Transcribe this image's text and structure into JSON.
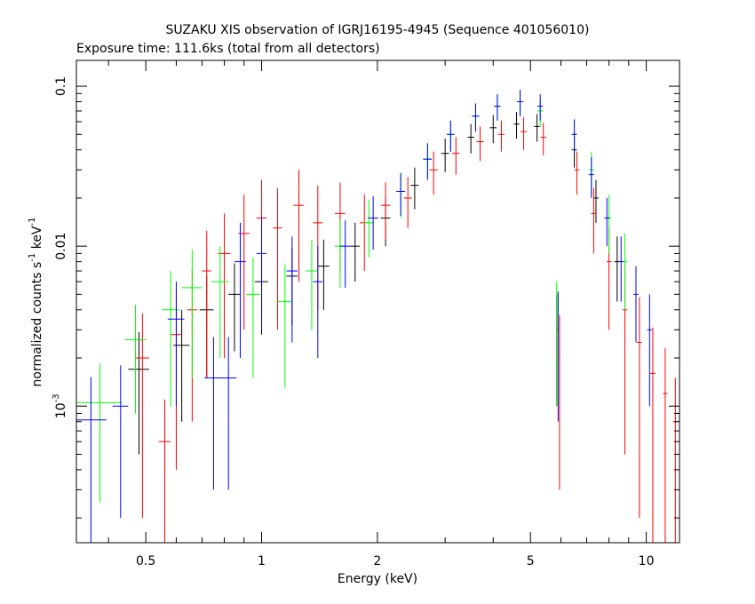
{
  "header": {
    "title": "SUZAKU XIS observation of IGRJ16195-4945 (Sequence 401056010)",
    "subtitle": "Exposure time: 111.6ks (total from all detectors)"
  },
  "chart_data": {
    "type": "scatter",
    "title": "SUZAKU XIS observation of IGRJ16195-4945 (Sequence 401056010)",
    "subtitle": "Exposure time: 111.6ks (total from all detectors)",
    "xlabel": "Energy (keV)",
    "ylabel_main": "normalized counts s",
    "ylabel_sup1": "-1",
    "ylabel_mid": " keV",
    "ylabel_sup2": "-1",
    "xscale": "log",
    "yscale": "log",
    "xlim": [
      0.33,
      12.2
    ],
    "ylim": [
      0.00014,
      0.145
    ],
    "x_ticks": [
      {
        "value": 0.5,
        "label": "0.5"
      },
      {
        "value": 1,
        "label": "1"
      },
      {
        "value": 2,
        "label": "2"
      },
      {
        "value": 5,
        "label": "5"
      },
      {
        "value": 10,
        "label": "10"
      }
    ],
    "y_ticks": [
      {
        "value": 0.001,
        "label": "10",
        "sup": "-3"
      },
      {
        "value": 0.01,
        "label": "0.01",
        "sup": ""
      },
      {
        "value": 0.1,
        "label": "0.1",
        "sup": ""
      }
    ],
    "grid": false,
    "series_colors": [
      "#000000",
      "#ff0000",
      "#00ff00",
      "#0000ff"
    ],
    "series": [
      {
        "color": "#000000",
        "points": [
          {
            "x": 0.48,
            "y": 0.0017,
            "xerr": 0.03,
            "yerr": 0.0012
          },
          {
            "x": 0.62,
            "y": 0.0024,
            "xerr": 0.03,
            "yerr": 0.0016
          },
          {
            "x": 0.72,
            "y": 0.004,
            "xerr": 0.03,
            "yerr": 0.0025
          },
          {
            "x": 0.85,
            "y": 0.005,
            "xerr": 0.03,
            "yerr": 0.0028
          },
          {
            "x": 1.0,
            "y": 0.006,
            "xerr": 0.04,
            "yerr": 0.0032
          },
          {
            "x": 1.2,
            "y": 0.0065,
            "xerr": 0.04,
            "yerr": 0.0033
          },
          {
            "x": 1.45,
            "y": 0.0075,
            "xerr": 0.05,
            "yerr": 0.0035
          },
          {
            "x": 1.75,
            "y": 0.01,
            "xerr": 0.05,
            "yerr": 0.004
          },
          {
            "x": 2.1,
            "y": 0.015,
            "xerr": 0.06,
            "yerr": 0.005
          },
          {
            "x": 2.5,
            "y": 0.024,
            "xerr": 0.06,
            "yerr": 0.007
          },
          {
            "x": 3.0,
            "y": 0.038,
            "xerr": 0.07,
            "yerr": 0.009
          },
          {
            "x": 3.5,
            "y": 0.048,
            "xerr": 0.07,
            "yerr": 0.01
          },
          {
            "x": 4.0,
            "y": 0.055,
            "xerr": 0.08,
            "yerr": 0.011
          },
          {
            "x": 4.6,
            "y": 0.058,
            "xerr": 0.08,
            "yerr": 0.011
          },
          {
            "x": 5.2,
            "y": 0.056,
            "xerr": 0.09,
            "yerr": 0.011
          },
          {
            "x": 5.85,
            "y": 0.003,
            "xerr": 0.02,
            "yerr": 0.002
          },
          {
            "x": 6.5,
            "y": 0.04,
            "xerr": 0.1,
            "yerr": 0.009
          },
          {
            "x": 7.4,
            "y": 0.02,
            "xerr": 0.12,
            "yerr": 0.006
          },
          {
            "x": 8.4,
            "y": 0.008,
            "xerr": 0.14,
            "yerr": 0.0035
          }
        ]
      },
      {
        "color": "#ff0000",
        "points": [
          {
            "x": 0.49,
            "y": 0.002,
            "xerr": 0.02,
            "yerr": 0.0018
          },
          {
            "x": 0.56,
            "y": 0.0006,
            "xerr": 0.02,
            "yerr": 0.0005
          },
          {
            "x": 0.6,
            "y": 0.0028,
            "xerr": 0.02,
            "yerr": 0.0024
          },
          {
            "x": 0.66,
            "y": 0.004,
            "xerr": 0.02,
            "yerr": 0.0032
          },
          {
            "x": 0.72,
            "y": 0.007,
            "xerr": 0.02,
            "yerr": 0.0055
          },
          {
            "x": 0.8,
            "y": 0.009,
            "xerr": 0.03,
            "yerr": 0.007
          },
          {
            "x": 0.9,
            "y": 0.012,
            "xerr": 0.03,
            "yerr": 0.009
          },
          {
            "x": 1.0,
            "y": 0.015,
            "xerr": 0.03,
            "yerr": 0.011
          },
          {
            "x": 1.1,
            "y": 0.013,
            "xerr": 0.03,
            "yerr": 0.01
          },
          {
            "x": 1.25,
            "y": 0.018,
            "xerr": 0.04,
            "yerr": 0.012
          },
          {
            "x": 1.4,
            "y": 0.014,
            "xerr": 0.04,
            "yerr": 0.01
          },
          {
            "x": 1.6,
            "y": 0.016,
            "xerr": 0.05,
            "yerr": 0.009
          },
          {
            "x": 1.85,
            "y": 0.014,
            "xerr": 0.05,
            "yerr": 0.007
          },
          {
            "x": 2.1,
            "y": 0.018,
            "xerr": 0.06,
            "yerr": 0.007
          },
          {
            "x": 2.4,
            "y": 0.02,
            "xerr": 0.06,
            "yerr": 0.007
          },
          {
            "x": 2.8,
            "y": 0.03,
            "xerr": 0.07,
            "yerr": 0.009
          },
          {
            "x": 3.2,
            "y": 0.038,
            "xerr": 0.07,
            "yerr": 0.01
          },
          {
            "x": 3.7,
            "y": 0.045,
            "xerr": 0.08,
            "yerr": 0.011
          },
          {
            "x": 4.2,
            "y": 0.05,
            "xerr": 0.08,
            "yerr": 0.011
          },
          {
            "x": 4.8,
            "y": 0.052,
            "xerr": 0.09,
            "yerr": 0.012
          },
          {
            "x": 5.4,
            "y": 0.048,
            "xerr": 0.09,
            "yerr": 0.011
          },
          {
            "x": 5.95,
            "y": 0.002,
            "xerr": 0.02,
            "yerr": 0.0017
          },
          {
            "x": 6.6,
            "y": 0.03,
            "xerr": 0.1,
            "yerr": 0.009
          },
          {
            "x": 7.3,
            "y": 0.016,
            "xerr": 0.11,
            "yerr": 0.007
          },
          {
            "x": 8.0,
            "y": 0.008,
            "xerr": 0.12,
            "yerr": 0.005
          },
          {
            "x": 8.8,
            "y": 0.004,
            "xerr": 0.13,
            "yerr": 0.0035
          },
          {
            "x": 9.6,
            "y": 0.0025,
            "xerr": 0.14,
            "yerr": 0.0023
          },
          {
            "x": 10.4,
            "y": 0.0016,
            "xerr": 0.15,
            "yerr": 0.0015
          },
          {
            "x": 11.2,
            "y": 0.0012,
            "xerr": 0.16,
            "yerr": 0.0011
          },
          {
            "x": 11.9,
            "y": 0.0008,
            "xerr": 0.16,
            "yerr": 0.0007
          }
        ]
      },
      {
        "color": "#00ff00",
        "points": [
          {
            "x": 0.38,
            "y": 0.00105,
            "xerr": 0.055,
            "yerr": 0.0008
          },
          {
            "x": 0.47,
            "y": 0.0026,
            "xerr": 0.03,
            "yerr": 0.0017
          },
          {
            "x": 0.58,
            "y": 0.004,
            "xerr": 0.03,
            "yerr": 0.003
          },
          {
            "x": 0.66,
            "y": 0.0055,
            "xerr": 0.04,
            "yerr": 0.004
          },
          {
            "x": 0.78,
            "y": 0.006,
            "xerr": 0.04,
            "yerr": 0.004
          },
          {
            "x": 0.95,
            "y": 0.005,
            "xerr": 0.04,
            "yerr": 0.0035
          },
          {
            "x": 1.15,
            "y": 0.0045,
            "xerr": 0.05,
            "yerr": 0.0032
          },
          {
            "x": 1.35,
            "y": 0.007,
            "xerr": 0.05,
            "yerr": 0.004
          },
          {
            "x": 1.6,
            "y": 0.01,
            "xerr": 0.05,
            "yerr": 0.0045
          },
          {
            "x": 1.9,
            "y": 0.014,
            "xerr": 0.06,
            "yerr": 0.0055
          },
          {
            "x": 2.3,
            "y": 0.022,
            "xerr": 0.06,
            "yerr": 0.007
          },
          {
            "x": 2.7,
            "y": 0.035,
            "xerr": 0.07,
            "yerr": 0.009
          },
          {
            "x": 3.1,
            "y": 0.05,
            "xerr": 0.07,
            "yerr": 0.011
          },
          {
            "x": 3.6,
            "y": 0.065,
            "xerr": 0.08,
            "yerr": 0.013
          },
          {
            "x": 4.1,
            "y": 0.075,
            "xerr": 0.08,
            "yerr": 0.014
          },
          {
            "x": 4.7,
            "y": 0.08,
            "xerr": 0.09,
            "yerr": 0.015
          },
          {
            "x": 5.3,
            "y": 0.07,
            "xerr": 0.09,
            "yerr": 0.014
          },
          {
            "x": 5.85,
            "y": 0.0035,
            "xerr": 0.02,
            "yerr": 0.0025
          },
          {
            "x": 6.5,
            "y": 0.05,
            "xerr": 0.1,
            "yerr": 0.012
          },
          {
            "x": 7.2,
            "y": 0.03,
            "xerr": 0.11,
            "yerr": 0.009
          },
          {
            "x": 8.0,
            "y": 0.015,
            "xerr": 0.12,
            "yerr": 0.006
          },
          {
            "x": 8.8,
            "y": 0.008,
            "xerr": 0.13,
            "yerr": 0.004
          }
        ]
      },
      {
        "color": "#0000ff",
        "points": [
          {
            "x": 0.36,
            "y": 0.00082,
            "xerr": 0.035,
            "yerr": 0.0007
          },
          {
            "x": 0.43,
            "y": 0.001,
            "xerr": 0.02,
            "yerr": 0.0008
          },
          {
            "x": 0.6,
            "y": 0.0035,
            "xerr": 0.03,
            "yerr": 0.0025
          },
          {
            "x": 0.75,
            "y": 0.0015,
            "xerr": 0.04,
            "yerr": 0.0012
          },
          {
            "x": 0.82,
            "y": 0.0015,
            "xerr": 0.04,
            "yerr": 0.0012
          },
          {
            "x": 0.88,
            "y": 0.008,
            "xerr": 0.03,
            "yerr": 0.006
          },
          {
            "x": 1.0,
            "y": 0.009,
            "xerr": 0.03,
            "yerr": 0.006
          },
          {
            "x": 1.2,
            "y": 0.007,
            "xerr": 0.04,
            "yerr": 0.0045
          },
          {
            "x": 1.4,
            "y": 0.006,
            "xerr": 0.04,
            "yerr": 0.004
          },
          {
            "x": 1.65,
            "y": 0.01,
            "xerr": 0.05,
            "yerr": 0.0045
          },
          {
            "x": 1.95,
            "y": 0.015,
            "xerr": 0.06,
            "yerr": 0.0055
          },
          {
            "x": 2.3,
            "y": 0.022,
            "xerr": 0.06,
            "yerr": 0.0065
          },
          {
            "x": 2.7,
            "y": 0.035,
            "xerr": 0.07,
            "yerr": 0.009
          },
          {
            "x": 3.1,
            "y": 0.05,
            "xerr": 0.07,
            "yerr": 0.011
          },
          {
            "x": 3.6,
            "y": 0.065,
            "xerr": 0.08,
            "yerr": 0.013
          },
          {
            "x": 4.1,
            "y": 0.075,
            "xerr": 0.08,
            "yerr": 0.014
          },
          {
            "x": 4.7,
            "y": 0.08,
            "xerr": 0.09,
            "yerr": 0.015
          },
          {
            "x": 5.3,
            "y": 0.075,
            "xerr": 0.09,
            "yerr": 0.014
          },
          {
            "x": 5.9,
            "y": 0.003,
            "xerr": 0.02,
            "yerr": 0.0022
          },
          {
            "x": 6.5,
            "y": 0.05,
            "xerr": 0.1,
            "yerr": 0.012
          },
          {
            "x": 7.2,
            "y": 0.028,
            "xerr": 0.11,
            "yerr": 0.008
          },
          {
            "x": 7.9,
            "y": 0.015,
            "xerr": 0.12,
            "yerr": 0.005
          },
          {
            "x": 8.6,
            "y": 0.008,
            "xerr": 0.13,
            "yerr": 0.0035
          },
          {
            "x": 9.4,
            "y": 0.005,
            "xerr": 0.14,
            "yerr": 0.0025
          },
          {
            "x": 10.2,
            "y": 0.003,
            "xerr": 0.15,
            "yerr": 0.002
          }
        ]
      }
    ]
  }
}
